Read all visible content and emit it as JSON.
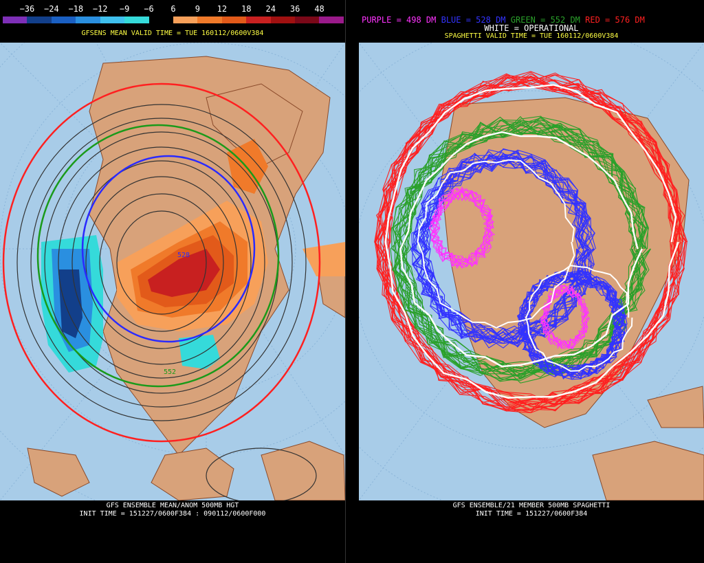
{
  "left": {
    "colorbar_labels": [
      "−36",
      "−24",
      "−18",
      "−12",
      "−9",
      "−6",
      "6",
      "9",
      "12",
      "18",
      "24",
      "36",
      "48"
    ],
    "colorbar_colors": [
      "#7e2fb7",
      "#123f8a",
      "#1a5fc2",
      "#2a8fe0",
      "#3fc0ee",
      "#35dada",
      "#000000",
      "#f7a05a",
      "#f07a2a",
      "#e25a1a",
      "#c82020",
      "#a01010",
      "#7a0818",
      "#9a1a8a"
    ],
    "valid_time": "GFSENS MEAN VALID TIME = TUE 160112/0600V384",
    "contour_label_1": "528",
    "contour_label_2": "552",
    "footer_line1": "GFS ENSEMBLE MEAN/ANOM 500MB HGT",
    "footer_line2": "INIT TIME = 151227/0600F384 : 090112/0600F000"
  },
  "right": {
    "legend": {
      "purple": "PURPLE = 498 DM",
      "blue": "BLUE = 528 DM",
      "green": "GREEN = 552 DM",
      "red": "RED = 576 DM",
      "white": "WHITE = OPERATIONAL"
    },
    "legend_colors": {
      "purple": "#ff33ff",
      "blue": "#3333ff",
      "green": "#2aa02a",
      "red": "#ff2020",
      "white": "#ffffff"
    },
    "valid_time": "SPAGHETTI VALID TIME = TUE 160112/0600V384",
    "footer_line1": "GFS ENSEMBLE/21 MEMBER 500MB SPAGHETTI",
    "footer_line2": "INIT TIME = 151227/0600F384"
  },
  "colors": {
    "ocean": "#a8cce8",
    "land": "#d8a27a",
    "border": "#8a4a2a"
  }
}
